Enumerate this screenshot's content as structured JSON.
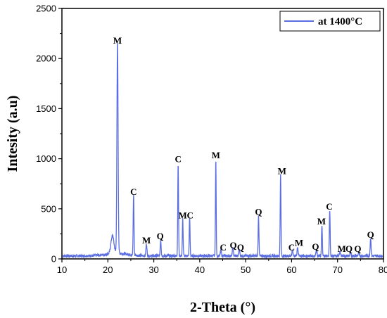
{
  "chart_data": {
    "type": "line",
    "xlabel": "2-Theta (°)",
    "ylabel": "Intesity (a.u)",
    "xlim": [
      10,
      80
    ],
    "ylim": [
      0,
      2500
    ],
    "xticks": [
      10,
      20,
      30,
      40,
      50,
      60,
      70,
      80
    ],
    "yticks": [
      0,
      500,
      1000,
      1500,
      2000,
      2500
    ],
    "legend_position": "top-right",
    "grid": false,
    "series": [
      {
        "name": "at 1400°C",
        "color": "#5b6ee1",
        "baseline": 30,
        "peaks": [
          {
            "x": 21.0,
            "y": 180,
            "w": 0.45
          },
          {
            "x": 22.1,
            "y": 2110,
            "w": 0.18
          },
          {
            "x": 25.6,
            "y": 610,
            "w": 0.12
          },
          {
            "x": 28.4,
            "y": 120,
            "w": 0.15
          },
          {
            "x": 31.5,
            "y": 160,
            "w": 0.14
          },
          {
            "x": 35.3,
            "y": 930,
            "w": 0.12
          },
          {
            "x": 36.3,
            "y": 370,
            "w": 0.12
          },
          {
            "x": 37.8,
            "y": 390,
            "w": 0.12
          },
          {
            "x": 43.5,
            "y": 970,
            "w": 0.11
          },
          {
            "x": 44.6,
            "y": 60,
            "w": 0.15
          },
          {
            "x": 47.2,
            "y": 80,
            "w": 0.15
          },
          {
            "x": 48.6,
            "y": 70,
            "w": 0.15
          },
          {
            "x": 52.8,
            "y": 410,
            "w": 0.12
          },
          {
            "x": 57.6,
            "y": 810,
            "w": 0.12
          },
          {
            "x": 60.2,
            "y": 60,
            "w": 0.15
          },
          {
            "x": 61.3,
            "y": 90,
            "w": 0.15
          },
          {
            "x": 65.4,
            "y": 70,
            "w": 0.15
          },
          {
            "x": 66.6,
            "y": 310,
            "w": 0.12
          },
          {
            "x": 68.3,
            "y": 460,
            "w": 0.12
          },
          {
            "x": 70.5,
            "y": 40,
            "w": 0.15
          },
          {
            "x": 72.8,
            "y": 40,
            "w": 0.15
          },
          {
            "x": 74.6,
            "y": 30,
            "w": 0.15
          },
          {
            "x": 77.2,
            "y": 180,
            "w": 0.14
          }
        ]
      }
    ],
    "annotations": [
      {
        "text": "M",
        "x": 22.1,
        "y": 2150
      },
      {
        "text": "C",
        "x": 25.6,
        "y": 640
      },
      {
        "text": "M",
        "x": 28.4,
        "y": 155
      },
      {
        "text": "Q",
        "x": 31.4,
        "y": 195
      },
      {
        "text": "C",
        "x": 35.3,
        "y": 965
      },
      {
        "text": "M",
        "x": 36.3,
        "y": 405
      },
      {
        "text": "C",
        "x": 37.9,
        "y": 405
      },
      {
        "text": "M",
        "x": 43.5,
        "y": 1005
      },
      {
        "text": "C",
        "x": 45.1,
        "y": 85
      },
      {
        "text": "Q",
        "x": 47.3,
        "y": 105
      },
      {
        "text": "Q",
        "x": 48.9,
        "y": 85
      },
      {
        "text": "Q",
        "x": 52.8,
        "y": 440
      },
      {
        "text": "M",
        "x": 57.9,
        "y": 845
      },
      {
        "text": "C",
        "x": 60.0,
        "y": 85
      },
      {
        "text": "M",
        "x": 61.6,
        "y": 130
      },
      {
        "text": "Q",
        "x": 65.2,
        "y": 90
      },
      {
        "text": "M",
        "x": 66.5,
        "y": 345
      },
      {
        "text": "C",
        "x": 68.2,
        "y": 490
      },
      {
        "text": "M",
        "x": 70.9,
        "y": 70
      },
      {
        "text": "Q",
        "x": 72.5,
        "y": 70
      },
      {
        "text": "Q",
        "x": 74.4,
        "y": 70
      },
      {
        "text": "Q",
        "x": 77.2,
        "y": 210
      }
    ]
  }
}
